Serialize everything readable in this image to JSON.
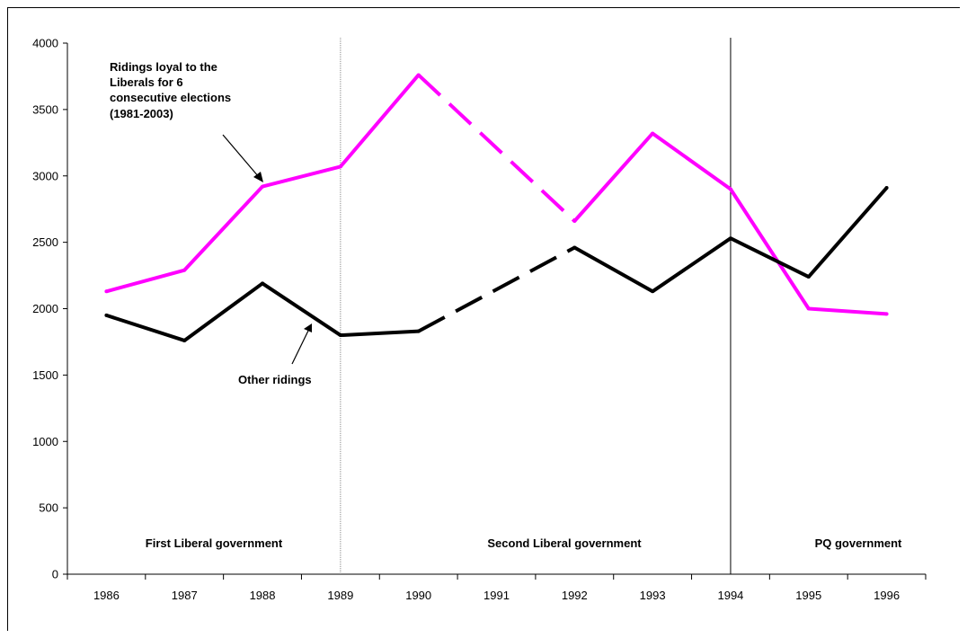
{
  "chart_data": {
    "type": "line",
    "categories": [
      "1986",
      "1987",
      "1988",
      "1989",
      "1990",
      "1991",
      "1992",
      "1993",
      "1994",
      "1995",
      "1996"
    ],
    "ylim": [
      0,
      4000
    ],
    "yticks": [
      0,
      500,
      1000,
      1500,
      2000,
      2500,
      3000,
      3500,
      4000
    ],
    "grid": false,
    "series": [
      {
        "name": "Ridings loyal to the Liberals for 6 consecutive elections (1981-2003)",
        "color": "#ff00ff",
        "values": [
          2130,
          2290,
          2920,
          3070,
          3760,
          null,
          2660,
          3320,
          2900,
          2000,
          1960
        ],
        "dashed_between": [
          "1990",
          "1992"
        ]
      },
      {
        "name": "Other ridings",
        "color": "#000000",
        "values": [
          1950,
          1760,
          2190,
          1800,
          1830,
          null,
          2460,
          2130,
          2530,
          2240,
          2910
        ],
        "dashed_between": [
          "1990",
          "1992"
        ]
      }
    ],
    "dividers": [
      {
        "at": "1989",
        "style": "dotted"
      },
      {
        "at": "1994",
        "style": "solid"
      }
    ],
    "periods": [
      "First Liberal government",
      "Second Liberal government",
      "PQ government"
    ],
    "annotations": {
      "loyal_label": [
        "Ridings loyal to the",
        "Liberals for 6",
        "consecutive elections",
        "(1981-2003)"
      ],
      "other_label": "Other ridings"
    }
  }
}
